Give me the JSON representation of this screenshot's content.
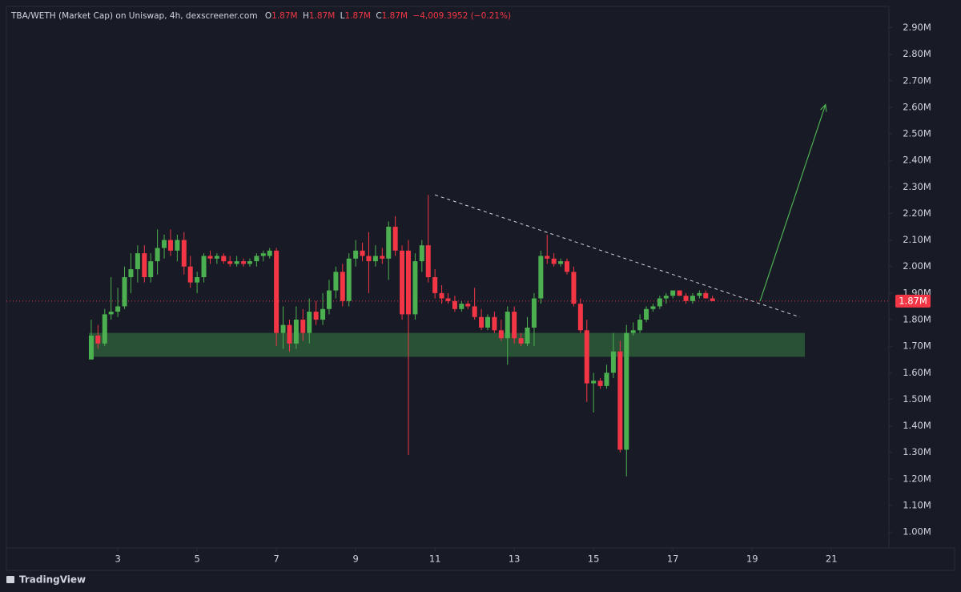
{
  "chart_data": {
    "type": "candlestick",
    "title": "TBA/WETH (Market Cap) on Uniswap, 4h, dexscreener.com",
    "ohlc_legend": [
      {
        "key": "O",
        "value": "1.87M"
      },
      {
        "key": "H",
        "value": "1.87M"
      },
      {
        "key": "L",
        "value": "1.87M"
      },
      {
        "key": "C",
        "value": "1.87M"
      }
    ],
    "change": "−4,009.3952 (−0.21%)",
    "brand": "TradingView",
    "up_color": "#4caf50",
    "down_color": "#f23645",
    "x": [
      2.33,
      2.5,
      2.67,
      2.83,
      3,
      3.17,
      3.33,
      3.5,
      3.67,
      3.83,
      4,
      4.17,
      4.33,
      4.5,
      4.67,
      4.83,
      5,
      5.17,
      5.33,
      5.5,
      5.67,
      5.83,
      6,
      6.17,
      6.33,
      6.5,
      6.67,
      6.83,
      7,
      7.17,
      7.33,
      7.5,
      7.67,
      7.83,
      8,
      8.17,
      8.33,
      8.5,
      8.67,
      8.83,
      9,
      9.17,
      9.33,
      9.5,
      9.67,
      9.83,
      10,
      10.17,
      10.33,
      10.5,
      10.67,
      10.83,
      11,
      11.17,
      11.33,
      11.5,
      11.67,
      11.83,
      12,
      12.17,
      12.33,
      12.5,
      12.67,
      12.83,
      13,
      13.17,
      13.33,
      13.5,
      13.67,
      13.83,
      14,
      14.17,
      14.33,
      14.5,
      14.67,
      14.83,
      15,
      15.17,
      15.33,
      15.5,
      15.67,
      15.83,
      16,
      16.17,
      16.33,
      16.5,
      16.67,
      16.83,
      17,
      17.17,
      17.33,
      17.5,
      17.67,
      17.83,
      18
    ],
    "open": [
      1.65,
      1.74,
      1.71,
      1.82,
      1.83,
      1.85,
      1.96,
      1.99,
      2.05,
      1.96,
      2.02,
      2.07,
      2.1,
      2.06,
      2.1,
      2.0,
      1.94,
      1.96,
      2.04,
      2.03,
      2.04,
      2.02,
      2.01,
      2.02,
      2.01,
      2.02,
      2.04,
      2.04,
      2.06,
      1.75,
      1.78,
      1.71,
      1.8,
      1.75,
      1.83,
      1.8,
      1.84,
      1.91,
      1.98,
      1.87,
      2.03,
      2.06,
      2.04,
      2.02,
      2.04,
      2.03,
      2.15,
      2.06,
      2.06,
      1.82,
      2.02,
      2.08,
      1.96,
      1.9,
      1.88,
      1.87,
      1.84,
      1.86,
      1.85,
      1.81,
      1.77,
      1.81,
      1.76,
      1.73,
      1.83,
      1.73,
      1.71,
      1.77,
      1.88,
      2.04,
      2.03,
      2.01,
      2.02,
      1.98,
      1.86,
      1.76,
      1.56,
      1.57,
      1.55,
      1.6,
      1.68,
      1.31,
      1.75,
      1.76,
      1.8,
      1.84,
      1.85,
      1.88,
      1.89,
      1.91,
      1.89,
      1.87,
      1.89,
      1.9,
      1.88
    ],
    "high": [
      1.8,
      1.78,
      1.84,
      1.96,
      1.92,
      2.0,
      2.05,
      2.08,
      2.08,
      2.05,
      2.14,
      2.12,
      2.14,
      2.12,
      2.13,
      2.04,
      1.98,
      2.05,
      2.06,
      2.05,
      2.05,
      2.04,
      2.04,
      2.03,
      2.03,
      2.05,
      2.06,
      2.07,
      2.07,
      1.85,
      1.8,
      1.85,
      1.84,
      1.88,
      1.87,
      1.9,
      1.95,
      2.0,
      2.01,
      2.05,
      2.1,
      2.09,
      2.13,
      2.08,
      2.07,
      2.17,
      2.19,
      2.08,
      2.1,
      2.05,
      2.1,
      2.27,
      1.99,
      1.93,
      1.9,
      1.89,
      1.87,
      1.87,
      1.92,
      1.84,
      1.82,
      1.83,
      1.8,
      1.85,
      1.85,
      1.75,
      1.81,
      1.9,
      2.06,
      2.12,
      2.05,
      2.03,
      2.03,
      2.0,
      1.88,
      1.8,
      1.6,
      1.58,
      1.63,
      1.75,
      1.72,
      1.78,
      1.79,
      1.82,
      1.85,
      1.86,
      1.89,
      1.9,
      1.91,
      1.91,
      1.9,
      1.9,
      1.91,
      1.91,
      1.89
    ],
    "low": [
      1.65,
      1.69,
      1.7,
      1.8,
      1.81,
      1.84,
      1.9,
      1.94,
      1.94,
      1.94,
      1.97,
      2.03,
      2.04,
      2.02,
      1.97,
      1.92,
      1.9,
      1.94,
      2.01,
      2.01,
      2.01,
      2.0,
      2.0,
      2.0,
      2.0,
      2.0,
      2.02,
      2.03,
      1.7,
      1.69,
      1.68,
      1.69,
      1.72,
      1.71,
      1.78,
      1.78,
      1.82,
      1.88,
      1.85,
      1.85,
      2.0,
      2.02,
      1.9,
      2.0,
      2.01,
      1.95,
      2.04,
      1.8,
      1.29,
      1.8,
      1.98,
      1.94,
      1.88,
      1.86,
      1.86,
      1.83,
      1.83,
      1.84,
      1.8,
      1.76,
      1.76,
      1.75,
      1.72,
      1.63,
      1.71,
      1.7,
      1.7,
      1.7,
      1.86,
      2.01,
      2.0,
      2.0,
      1.97,
      1.85,
      1.75,
      1.49,
      1.45,
      1.54,
      1.54,
      1.58,
      1.3,
      1.21,
      1.74,
      1.75,
      1.79,
      1.83,
      1.84,
      1.86,
      1.88,
      1.89,
      1.86,
      1.86,
      1.88,
      1.88,
      1.87
    ],
    "close": [
      1.74,
      1.71,
      1.82,
      1.83,
      1.85,
      1.96,
      1.99,
      2.05,
      1.96,
      2.02,
      2.07,
      2.1,
      2.06,
      2.1,
      2.0,
      1.94,
      1.96,
      2.04,
      2.03,
      2.04,
      2.02,
      2.01,
      2.02,
      2.01,
      2.02,
      2.04,
      2.05,
      2.06,
      1.75,
      1.78,
      1.71,
      1.8,
      1.75,
      1.83,
      1.8,
      1.84,
      1.91,
      1.98,
      1.87,
      2.03,
      2.06,
      2.04,
      2.02,
      2.04,
      2.03,
      2.15,
      2.06,
      1.82,
      1.82,
      2.02,
      2.08,
      1.96,
      1.9,
      1.88,
      1.87,
      1.84,
      1.86,
      1.85,
      1.81,
      1.77,
      1.81,
      1.76,
      1.73,
      1.83,
      1.73,
      1.71,
      1.77,
      1.88,
      2.04,
      2.03,
      2.01,
      2.02,
      1.98,
      1.86,
      1.76,
      1.56,
      1.57,
      1.55,
      1.6,
      1.68,
      1.31,
      1.75,
      1.76,
      1.8,
      1.84,
      1.85,
      1.88,
      1.89,
      1.91,
      1.89,
      1.87,
      1.89,
      1.9,
      1.88,
      1.87
    ],
    "xlim": [
      0.19,
      22.45
    ],
    "ylim": [
      0.94,
      2.98
    ],
    "xticks": [
      3,
      5,
      7,
      9,
      11,
      13,
      15,
      17,
      19,
      21
    ],
    "yticks": [
      {
        "value": 1.0,
        "label": "1.00M"
      },
      {
        "value": 1.1,
        "label": "1.10M"
      },
      {
        "value": 1.2,
        "label": "1.20M"
      },
      {
        "value": 1.3,
        "label": "1.30M"
      },
      {
        "value": 1.4,
        "label": "1.40M"
      },
      {
        "value": 1.5,
        "label": "1.50M"
      },
      {
        "value": 1.6,
        "label": "1.60M"
      },
      {
        "value": 1.7,
        "label": "1.70M"
      },
      {
        "value": 1.8,
        "label": "1.80M"
      },
      {
        "value": 1.9,
        "label": "1.90M"
      },
      {
        "value": 2.0,
        "label": "2.00M"
      },
      {
        "value": 2.1,
        "label": "2.10M"
      },
      {
        "value": 2.2,
        "label": "2.20M"
      },
      {
        "value": 2.3,
        "label": "2.30M"
      },
      {
        "value": 2.4,
        "label": "2.40M"
      },
      {
        "value": 2.5,
        "label": "2.50M"
      },
      {
        "value": 2.6,
        "label": "2.60M"
      },
      {
        "value": 2.7,
        "label": "2.70M"
      },
      {
        "value": 2.8,
        "label": "2.80M"
      },
      {
        "value": 2.9,
        "label": "2.90M"
      }
    ],
    "last_price": {
      "value": 1.87,
      "label": "1.87M"
    },
    "support_zone": {
      "x": [
        2.27,
        20.33
      ],
      "y": [
        1.66,
        1.75
      ],
      "color": "#2d5a3a"
    },
    "trendline": {
      "x": [
        11,
        20.2
      ],
      "y": [
        2.27,
        1.81
      ],
      "color": "#d1d4dc"
    },
    "arrow": {
      "x": [
        19.2,
        20.85
      ],
      "y": [
        1.87,
        2.61
      ],
      "color": "#4caf50"
    }
  }
}
